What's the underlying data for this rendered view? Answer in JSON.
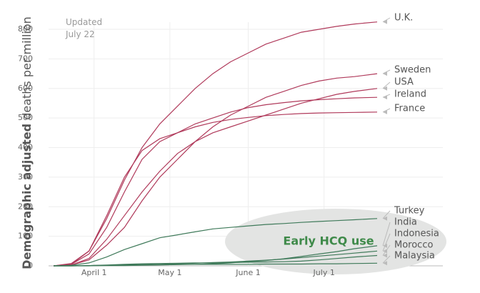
{
  "chart_data": {
    "type": "line",
    "note": [
      "Updated",
      "July 22"
    ],
    "ylabel": [
      "Demographic adjusted",
      "deaths per million"
    ],
    "annotation": "Early HCQ use",
    "x": [
      15,
      22,
      29,
      36,
      43,
      50,
      57,
      64,
      71,
      78,
      85,
      92,
      99,
      106,
      113,
      120,
      127,
      134,
      143
    ],
    "xlim": [
      13,
      169
    ],
    "xticks": [
      {
        "value": 31,
        "label": "April 1"
      },
      {
        "value": 61,
        "label": "May 1"
      },
      {
        "value": 92,
        "label": "June 1"
      },
      {
        "value": 122,
        "label": "July 1"
      }
    ],
    "ylim": [
      0,
      800
    ],
    "yticks": [
      0,
      100,
      200,
      300,
      400,
      500,
      600,
      700,
      800
    ],
    "grid": true,
    "series": [
      {
        "name": "U.K.",
        "color": "#b03a5b",
        "values": [
          0,
          8,
          50,
          160,
          290,
          400,
          480,
          540,
          600,
          650,
          690,
          720,
          750,
          770,
          790,
          800,
          810,
          818,
          825
        ]
      },
      {
        "name": "Sweden",
        "color": "#b03a5b",
        "values": [
          0,
          3,
          20,
          70,
          130,
          220,
          300,
          360,
          420,
          470,
          510,
          540,
          570,
          590,
          610,
          625,
          635,
          640,
          650
        ]
      },
      {
        "name": "USA",
        "color": "#b03a5b",
        "values": [
          0,
          3,
          25,
          90,
          170,
          250,
          320,
          380,
          420,
          450,
          470,
          490,
          510,
          530,
          550,
          565,
          580,
          590,
          600
        ]
      },
      {
        "name": "Ireland",
        "color": "#b03a5b",
        "values": [
          0,
          5,
          40,
          130,
          250,
          360,
          420,
          450,
          480,
          500,
          520,
          535,
          545,
          552,
          558,
          562,
          565,
          568,
          570
        ]
      },
      {
        "name": "France",
        "color": "#b03a5b",
        "values": [
          0,
          5,
          50,
          170,
          300,
          390,
          430,
          450,
          470,
          485,
          495,
          502,
          508,
          512,
          515,
          517,
          518,
          519,
          520
        ]
      },
      {
        "name": "Turkey",
        "color": "#3f7a5a",
        "values": [
          0,
          2,
          10,
          30,
          55,
          75,
          95,
          105,
          115,
          125,
          130,
          135,
          140,
          143,
          147,
          150,
          153,
          156,
          160
        ]
      },
      {
        "name": "India",
        "color": "#3f7a5a",
        "values": [
          0,
          0,
          0,
          1,
          1,
          2,
          3,
          4,
          5,
          7,
          10,
          14,
          18,
          24,
          32,
          40,
          48,
          58,
          68
        ]
      },
      {
        "name": "Indonesia",
        "color": "#3f7a5a",
        "values": [
          0,
          0,
          1,
          2,
          3,
          4,
          5,
          7,
          9,
          11,
          13,
          16,
          19,
          23,
          28,
          33,
          38,
          43,
          50
        ]
      },
      {
        "name": "Morocco",
        "color": "#3f7a5a",
        "values": [
          0,
          0,
          1,
          3,
          5,
          7,
          8,
          9,
          10,
          10,
          11,
          12,
          13,
          14,
          16,
          20,
          25,
          30,
          35
        ]
      },
      {
        "name": "Malaysia",
        "color": "#3f7a5a",
        "values": [
          0,
          0,
          1,
          2,
          3,
          4,
          4,
          5,
          5,
          5,
          5,
          5,
          6,
          6,
          6,
          7,
          7,
          8,
          9
        ]
      }
    ]
  }
}
